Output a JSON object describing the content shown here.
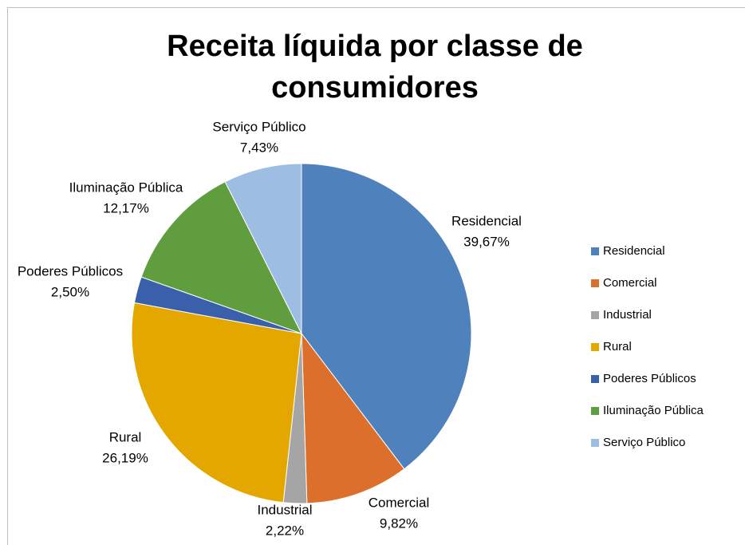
{
  "chart_data": {
    "type": "pie",
    "title": "Receita líquida por classe de consumidores",
    "categories": [
      "Residencial",
      "Comercial",
      "Industrial",
      "Rural",
      "Poderes Públicos",
      "Iluminação Pública",
      "Serviço Público"
    ],
    "values": [
      39.67,
      9.82,
      2.22,
      26.19,
      2.5,
      12.17,
      7.43
    ],
    "value_labels": [
      "39,67%",
      "9,82%",
      "2,22%",
      "26,19%",
      "2,50%",
      "12,17%",
      "7,43%"
    ],
    "colors": [
      "#4f81bd",
      "#dd6f2c",
      "#a5a5a5",
      "#e3a700",
      "#3a5fab",
      "#5f9d3f",
      "#9dbde3"
    ],
    "legend": "right"
  }
}
